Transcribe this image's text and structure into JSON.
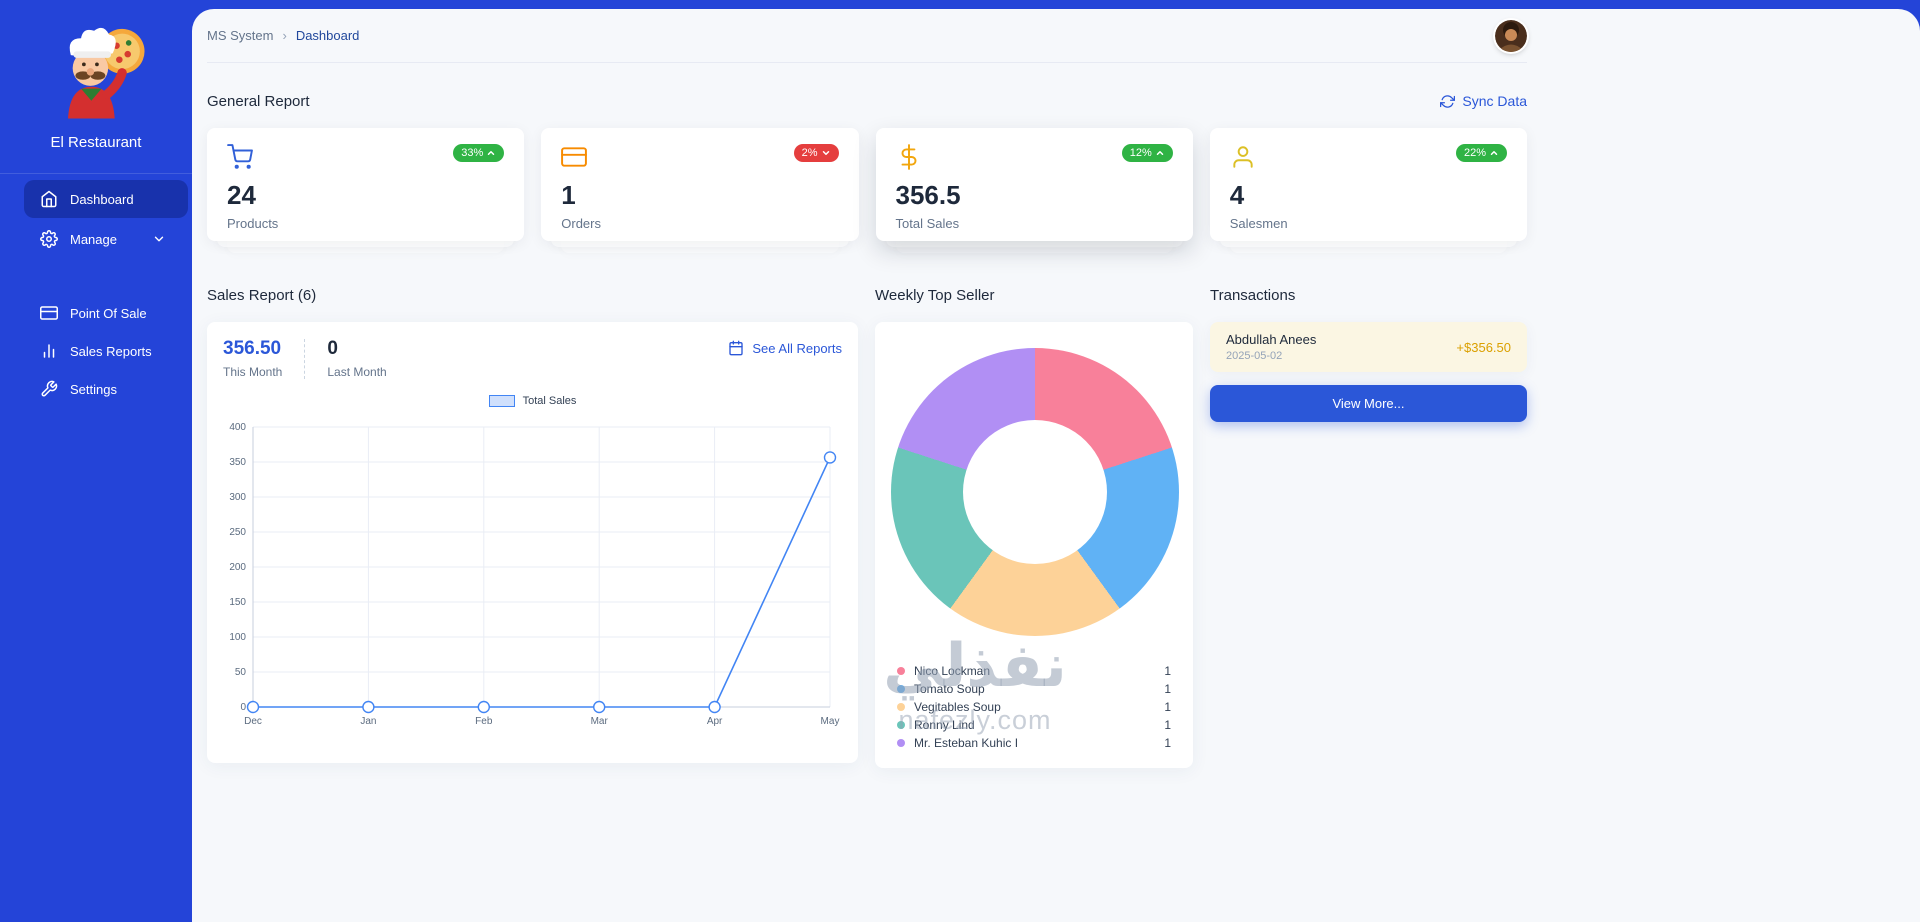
{
  "colors": {
    "sidebar": "#2444d8",
    "primary": "#2b57d8",
    "success": "#2fb344",
    "danger": "#e53e3e",
    "gold": "#dba000"
  },
  "sidebar": {
    "brand": "El Restaurant",
    "items": [
      {
        "label": "Dashboard",
        "active": true
      },
      {
        "label": "Manage",
        "has_submenu": true
      },
      {
        "label": "Point Of Sale"
      },
      {
        "label": "Sales Reports"
      },
      {
        "label": "Settings"
      }
    ]
  },
  "header": {
    "breadcrumb_root": "MS System",
    "breadcrumb_sep": "›",
    "breadcrumb_current": "Dashboard"
  },
  "general_report": {
    "title": "General Report",
    "sync_label": "Sync Data",
    "cards": [
      {
        "icon": "cart-icon",
        "icon_color": "#3160d8",
        "badge": "33%",
        "trend": "up",
        "badge_color": "#2fb344",
        "value": "24",
        "label": "Products"
      },
      {
        "icon": "credit-card-icon",
        "icon_color": "#f78b00",
        "badge": "2%",
        "trend": "down",
        "badge_color": "#e53e3e",
        "value": "1",
        "label": "Orders"
      },
      {
        "icon": "dollar-icon",
        "icon_color": "#f2a60d",
        "badge": "12%",
        "trend": "up",
        "badge_color": "#2fb344",
        "value": "356.5",
        "label": "Total Sales"
      },
      {
        "icon": "user-icon",
        "icon_color": "#dcc026",
        "badge": "22%",
        "trend": "up",
        "badge_color": "#2fb344",
        "value": "4",
        "label": "Salesmen"
      }
    ]
  },
  "sales_report": {
    "title": "Sales Report (6)",
    "this_month_value": "356.50",
    "this_month_label": "This Month",
    "last_month_value": "0",
    "last_month_label": "Last Month",
    "see_all_label": "See All Reports"
  },
  "weekly_top_seller": {
    "title": "Weekly Top Seller"
  },
  "transactions": {
    "title": "Transactions",
    "items": [
      {
        "name": "Abdullah Anees",
        "date": "2025-05-02",
        "amount": "+$356.50"
      }
    ],
    "view_more_label": "View More..."
  },
  "watermark": {
    "arabic": "نفذلي",
    "latin": "nafezly.com"
  },
  "chart_data": [
    {
      "type": "line",
      "title": "Total Sales",
      "legend_position": "top",
      "categories": [
        "Dec",
        "Jan",
        "Feb",
        "Mar",
        "Apr",
        "May"
      ],
      "values": [
        0,
        0,
        0,
        0,
        0,
        356.5
      ],
      "ylim": [
        0,
        400
      ],
      "ytick_step": 50,
      "grid": true,
      "line_color": "#4285f4"
    },
    {
      "type": "pie",
      "title": "Weekly Top Seller",
      "legend_position": "bottom",
      "series": [
        {
          "name": "Nico Lockman",
          "value": 1,
          "color": "#f8809a"
        },
        {
          "name": "Tomato Soup",
          "value": 1,
          "color": "#60b2f5"
        },
        {
          "name": "Vegitables Soup",
          "value": 1,
          "color": "#fdd298"
        },
        {
          "name": "Ronny Lind",
          "value": 1,
          "color": "#6ac5b9"
        },
        {
          "name": "Mr. Esteban Kuhic I",
          "value": 1,
          "color": "#b18ff4"
        }
      ]
    }
  ]
}
